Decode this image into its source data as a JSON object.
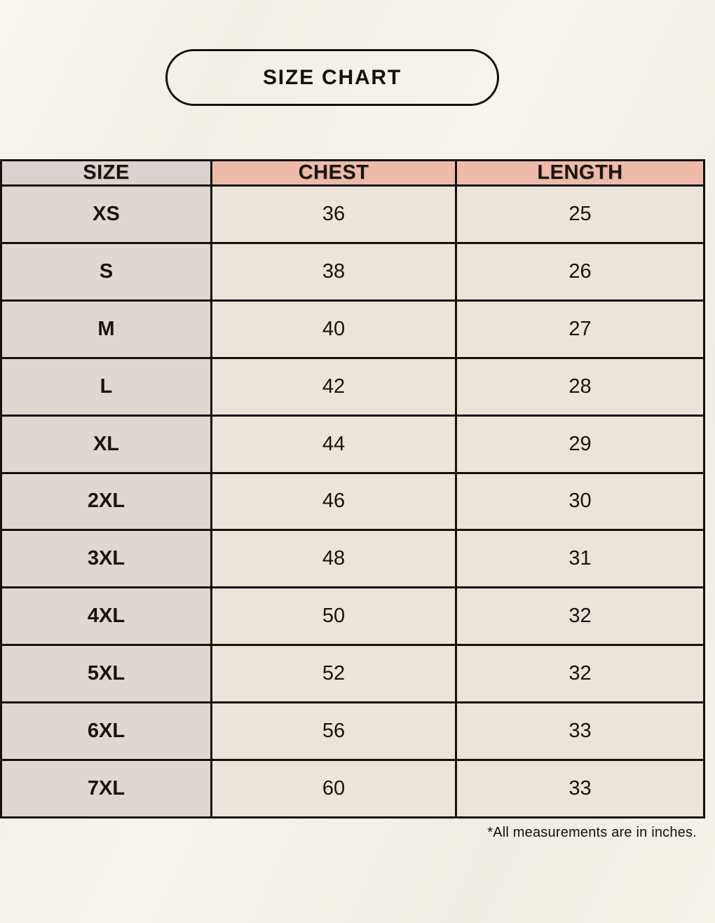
{
  "page": {
    "title": "SIZE CHART",
    "footnote": "*All measurements are in inches."
  },
  "colors": {
    "background": "#f5f2ea",
    "header_accent": "#eebbaa",
    "size_column": "#ded7d2",
    "value_cell": "#eae4da",
    "border": "#15120d",
    "text": "#171310"
  },
  "chart_data": {
    "type": "table",
    "title": "SIZE CHART",
    "columns": [
      "SIZE",
      "CHEST",
      "LENGTH"
    ],
    "rows": [
      [
        "XS",
        "36",
        "25"
      ],
      [
        "S",
        "38",
        "26"
      ],
      [
        "M",
        "40",
        "27"
      ],
      [
        "L",
        "42",
        "28"
      ],
      [
        "XL",
        "44",
        "29"
      ],
      [
        "2XL",
        "46",
        "30"
      ],
      [
        "3XL",
        "48",
        "31"
      ],
      [
        "4XL",
        "50",
        "32"
      ],
      [
        "5XL",
        "52",
        "32"
      ],
      [
        "6XL",
        "56",
        "33"
      ],
      [
        "7XL",
        "60",
        "33"
      ]
    ],
    "note": "*All measurements are in inches.",
    "units": "inches"
  }
}
